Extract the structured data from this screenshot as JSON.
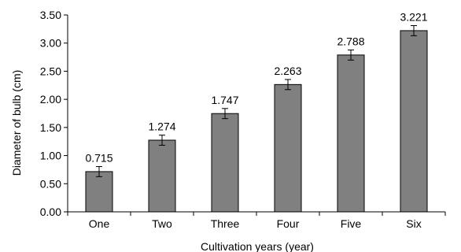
{
  "chart_data": {
    "type": "bar",
    "categories": [
      "One",
      "Two",
      "Three",
      "Four",
      "Five",
      "Six"
    ],
    "values": [
      0.715,
      1.274,
      1.747,
      2.263,
      2.788,
      3.221
    ],
    "value_labels": [
      "0.715",
      "1.274",
      "1.747",
      "2.263",
      "2.788",
      "3.221"
    ],
    "error": [
      0.09,
      0.09,
      0.09,
      0.09,
      0.09,
      0.09
    ],
    "xlabel": "Cultivation years (year)",
    "ylabel": "Diameter of bulb (cm)",
    "ylim": [
      0,
      3.5
    ],
    "yticks": [
      "0.00",
      "0.50",
      "1.00",
      "1.50",
      "2.00",
      "2.50",
      "3.00",
      "3.50"
    ],
    "grid": false,
    "legend": "none",
    "bar_color": "#808080",
    "bar_edge_color": "#000000"
  }
}
